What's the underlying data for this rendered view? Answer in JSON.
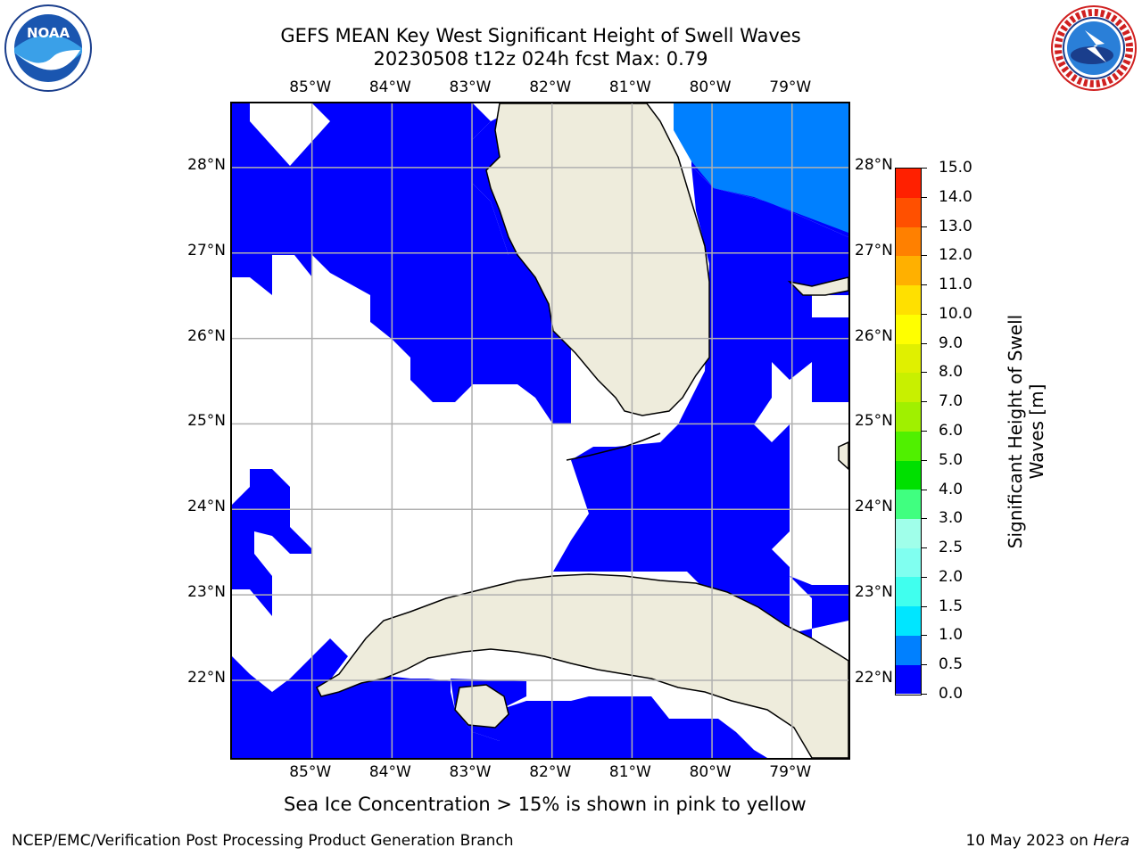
{
  "title_line1": "GEFS MEAN Key West Significant Height of Swell Waves",
  "title_line2": "20230508 t12z 024h fcst   Max: 0.79",
  "x_ticks": [
    "85°W",
    "84°W",
    "83°W",
    "82°W",
    "81°W",
    "80°W",
    "79°W"
  ],
  "y_ticks": [
    "28°N",
    "27°N",
    "26°N",
    "25°N",
    "24°N",
    "23°N",
    "22°N"
  ],
  "colorbar": {
    "label_line1": "Significant Height of Swell",
    "label_line2": "Waves [m]",
    "ticks": [
      "0.0",
      "0.5",
      "1.0",
      "1.5",
      "2.0",
      "2.5",
      "3.0",
      "4.0",
      "5.0",
      "6.0",
      "7.0",
      "8.0",
      "9.0",
      "10.0",
      "11.0",
      "12.0",
      "13.0",
      "14.0",
      "15.0"
    ],
    "colors": [
      "#0000ff",
      "#0080ff",
      "#00e6ff",
      "#40ffee",
      "#80fff0",
      "#a0ffea",
      "#40ff80",
      "#00e000",
      "#50f000",
      "#a0f000",
      "#c8f000",
      "#e0f000",
      "#ffff00",
      "#ffe000",
      "#ffb000",
      "#ff8000",
      "#ff5000",
      "#ff2000"
    ]
  },
  "map": {
    "lon_range": [
      -86.0,
      -78.25
    ],
    "lat_range": [
      21.05,
      28.75
    ],
    "land_color": "#eeecdc",
    "ocean_low_color": "#0000ff",
    "ocean_mid_color": "#0080ff",
    "grid_color": "#b0b0b0"
  },
  "note": "Sea Ice Concentration > 15% is shown in pink to yellow",
  "footer_left": "NCEP/EMC/Verification Post Processing Product Generation Branch",
  "footer_right_prefix": "10 May 2023 on ",
  "footer_right_host": "Hera",
  "logos": {
    "noaa_text": "NOAA",
    "noaa_ring_text": "NATIONAL OCEANIC AND ATMOSPHERIC ADMINISTRATION · U.S. DEPARTMENT OF COMMERCE",
    "nws_ring_text": "NATIONAL WEATHER SERVICE"
  }
}
